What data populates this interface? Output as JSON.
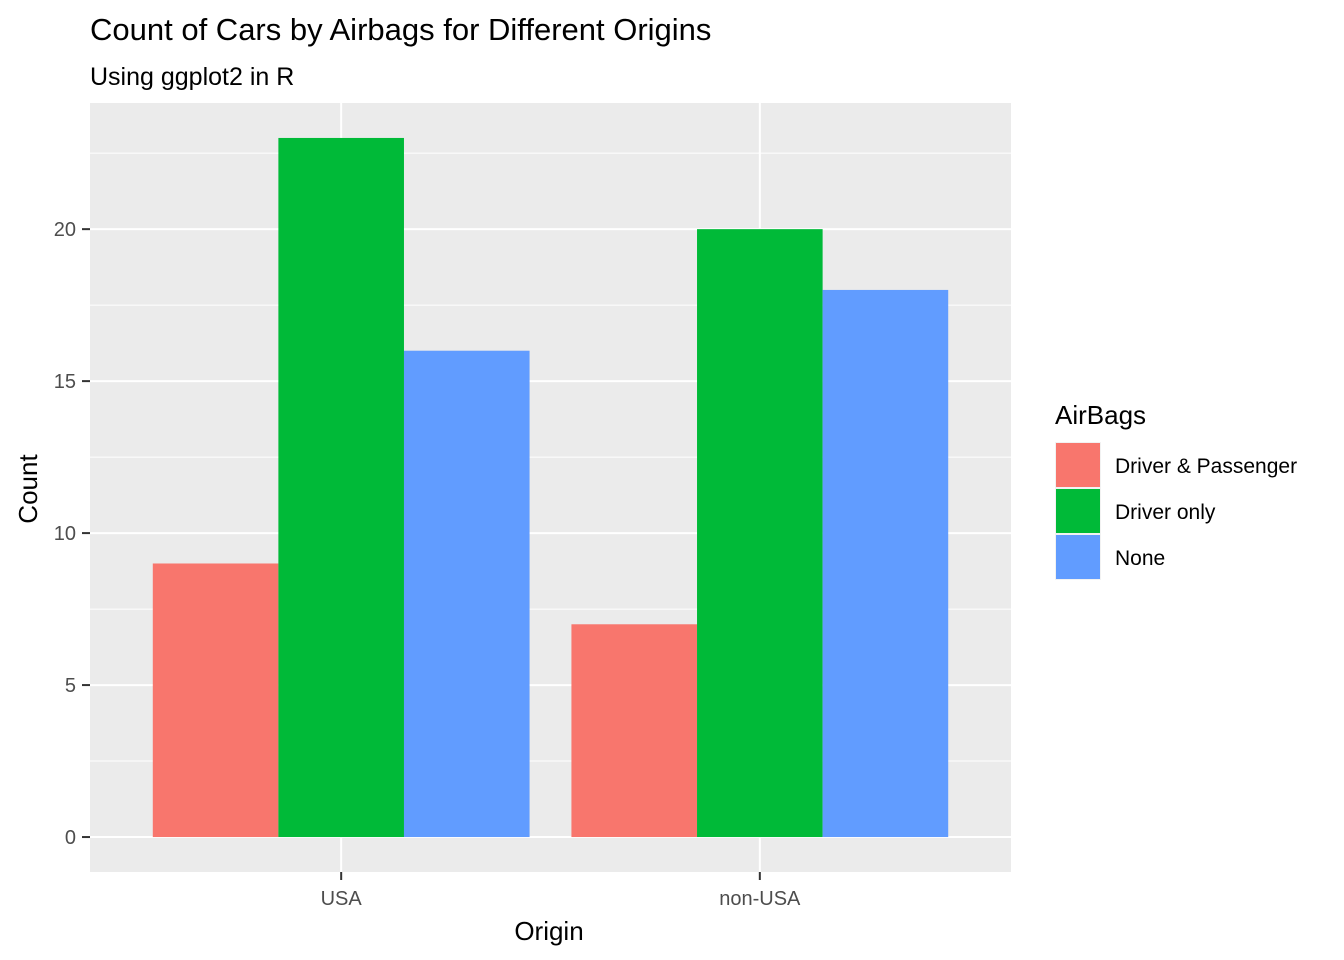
{
  "chart_data": {
    "type": "bar",
    "title": "Count of Cars by Airbags for Different Origins",
    "subtitle": "Using ggplot2 in R",
    "xlabel": "Origin",
    "ylabel": "Count",
    "categories": [
      "USA",
      "non-USA"
    ],
    "series": [
      {
        "name": "Driver & Passenger",
        "values": [
          9,
          7
        ],
        "color": "#F8766D"
      },
      {
        "name": "Driver only",
        "values": [
          23,
          20
        ],
        "color": "#00BA38"
      },
      {
        "name": "None",
        "values": [
          16,
          18
        ],
        "color": "#619CFF"
      }
    ],
    "ylim": [
      -1.15,
      24.15
    ],
    "yticks": [
      0,
      5,
      10,
      15,
      20
    ],
    "grid": true,
    "legend": {
      "title": "AirBags",
      "placement": "right"
    },
    "panel_background": "#EBEBEB"
  }
}
